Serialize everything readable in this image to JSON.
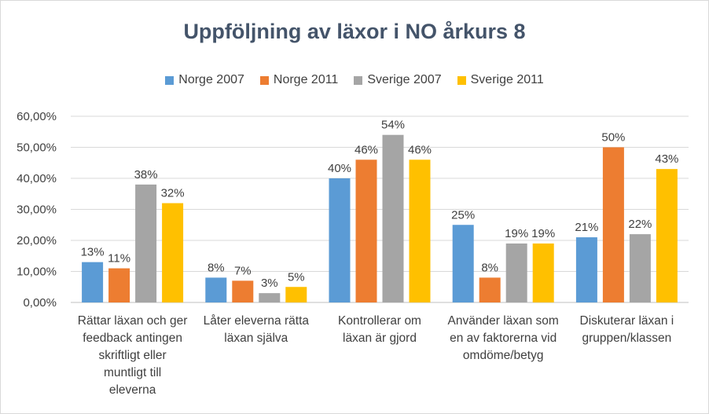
{
  "chart_data": {
    "type": "bar",
    "title": "Uppföljning av läxor i NO årkurs 8",
    "categories": [
      "Rättar läxan och ger\nfeedback antingen\nskriftligt eller\nmuntligt till\neleverna",
      "Låter eleverna rätta\nläxan själva",
      "Kontrollerar om\nläxan är gjord",
      "Använder läxan som\nen av faktorerna vid\nomdöme/betyg",
      "Diskuterar läxan i\ngruppen/klassen"
    ],
    "series": [
      {
        "name": "Norge 2007",
        "color": "#5b9bd5",
        "values": [
          13,
          8,
          40,
          25,
          21
        ],
        "labels": [
          "13%",
          "8%",
          "40%",
          "25%",
          "21%"
        ]
      },
      {
        "name": "Norge 2011",
        "color": "#ed7d31",
        "values": [
          11,
          7,
          46,
          8,
          50
        ],
        "labels": [
          "11%",
          "7%",
          "46%",
          "8%",
          "50%"
        ]
      },
      {
        "name": "Sverige 2007",
        "color": "#a5a5a5",
        "values": [
          38,
          3,
          54,
          19,
          22
        ],
        "labels": [
          "38%",
          "3%",
          "54%",
          "19%",
          "22%"
        ]
      },
      {
        "name": "Sverige 2011",
        "color": "#ffc000",
        "values": [
          32,
          5,
          46,
          19,
          43
        ],
        "labels": [
          "32%",
          "5%",
          "46%",
          "19%",
          "43%"
        ]
      }
    ],
    "ylim": [
      0,
      60
    ],
    "yticks": [
      "0,00%",
      "10,00%",
      "20,00%",
      "30,00%",
      "40,00%",
      "50,00%",
      "60,00%"
    ],
    "grid": true,
    "legend_position": "top"
  }
}
